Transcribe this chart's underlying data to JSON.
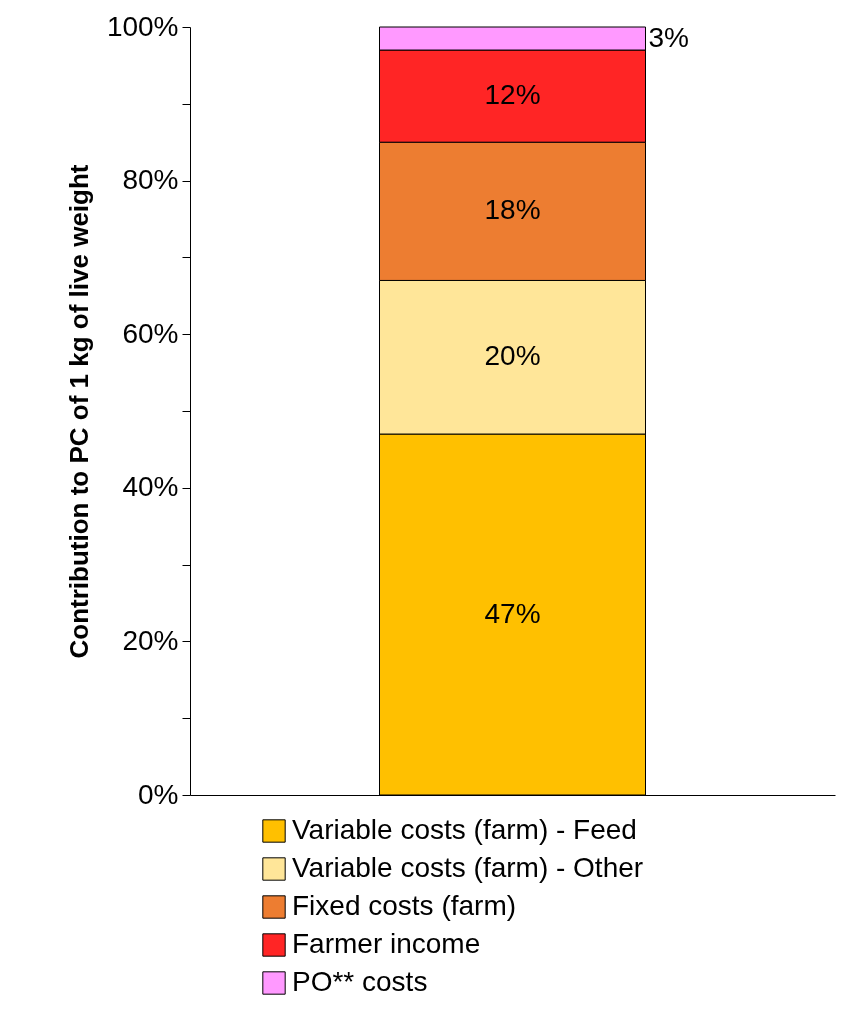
{
  "chart_data": {
    "type": "bar",
    "ylabel": "Contribution to PC of 1 kg of live weight",
    "categories": [
      null
    ],
    "stacked": true,
    "series": [
      {
        "name": "Variable costs (farm) - Feed",
        "color": "#ffc000",
        "values": [
          47
        ],
        "value_labels": [
          "47%"
        ]
      },
      {
        "name": "Variable costs (farm) - Other",
        "color": "#ffe699",
        "values": [
          20
        ],
        "value_labels": [
          "20%"
        ]
      },
      {
        "name": "Fixed costs (farm)",
        "color": "#ed7d31",
        "values": [
          18
        ],
        "value_labels": [
          "18%"
        ]
      },
      {
        "name": "Farmer income",
        "color": "#ff2525",
        "values": [
          12
        ],
        "value_labels": [
          "12%"
        ]
      },
      {
        "name": "PO** costs",
        "color": "#ff99ff",
        "values": [
          3
        ],
        "value_labels": [
          "3%"
        ]
      }
    ],
    "ylim": [
      0,
      100
    ],
    "yticks": [
      {
        "value": 0,
        "label": "0%"
      },
      {
        "value": 10,
        "label": null
      },
      {
        "value": 20,
        "label": "20%"
      },
      {
        "value": 30,
        "label": null
      },
      {
        "value": 40,
        "label": "40%"
      },
      {
        "value": 50,
        "label": null
      },
      {
        "value": 60,
        "label": "60%"
      },
      {
        "value": 70,
        "label": null
      },
      {
        "value": 80,
        "label": "80%"
      },
      {
        "value": 90,
        "label": null
      },
      {
        "value": 100,
        "label": "100%"
      }
    ],
    "grid": false,
    "legend": "bottom",
    "tick_labels": "y"
  }
}
